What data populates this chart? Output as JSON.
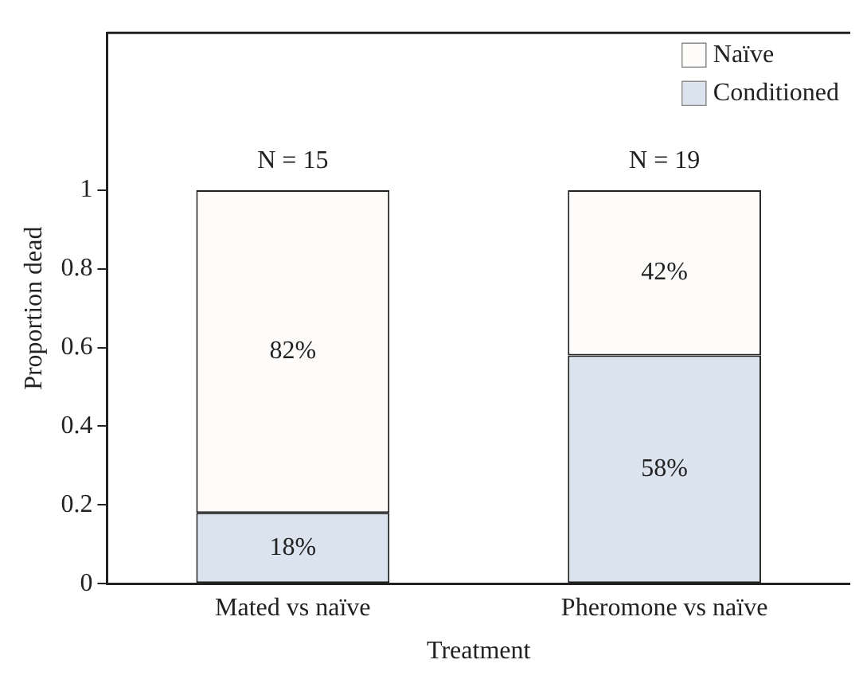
{
  "chart_data": {
    "type": "bar",
    "stacked": true,
    "xlabel": "Treatment",
    "ylabel": "Proportion dead",
    "categories": [
      "Mated vs naïve",
      "Pheromone vs naïve"
    ],
    "series": [
      {
        "name": "Conditioned",
        "color": "#dae3ee",
        "values": [
          0.18,
          0.58
        ],
        "value_labels": [
          "18%",
          "58%"
        ]
      },
      {
        "name": "Naïve",
        "color": "#fdfcfa",
        "values": [
          0.82,
          0.42
        ],
        "value_labels": [
          "82%",
          "42%"
        ]
      }
    ],
    "ylim": [
      0,
      1.4
    ],
    "yticks": [
      0,
      0.2,
      0.4,
      0.6,
      0.8,
      1
    ],
    "grid": false,
    "legend": "top right",
    "annotations": [
      {
        "text": "N = 15",
        "x": "Mated vs naïve",
        "y": 1
      },
      {
        "text": "N = 19",
        "x": "Pheromone vs naïve",
        "y": 1
      }
    ]
  }
}
